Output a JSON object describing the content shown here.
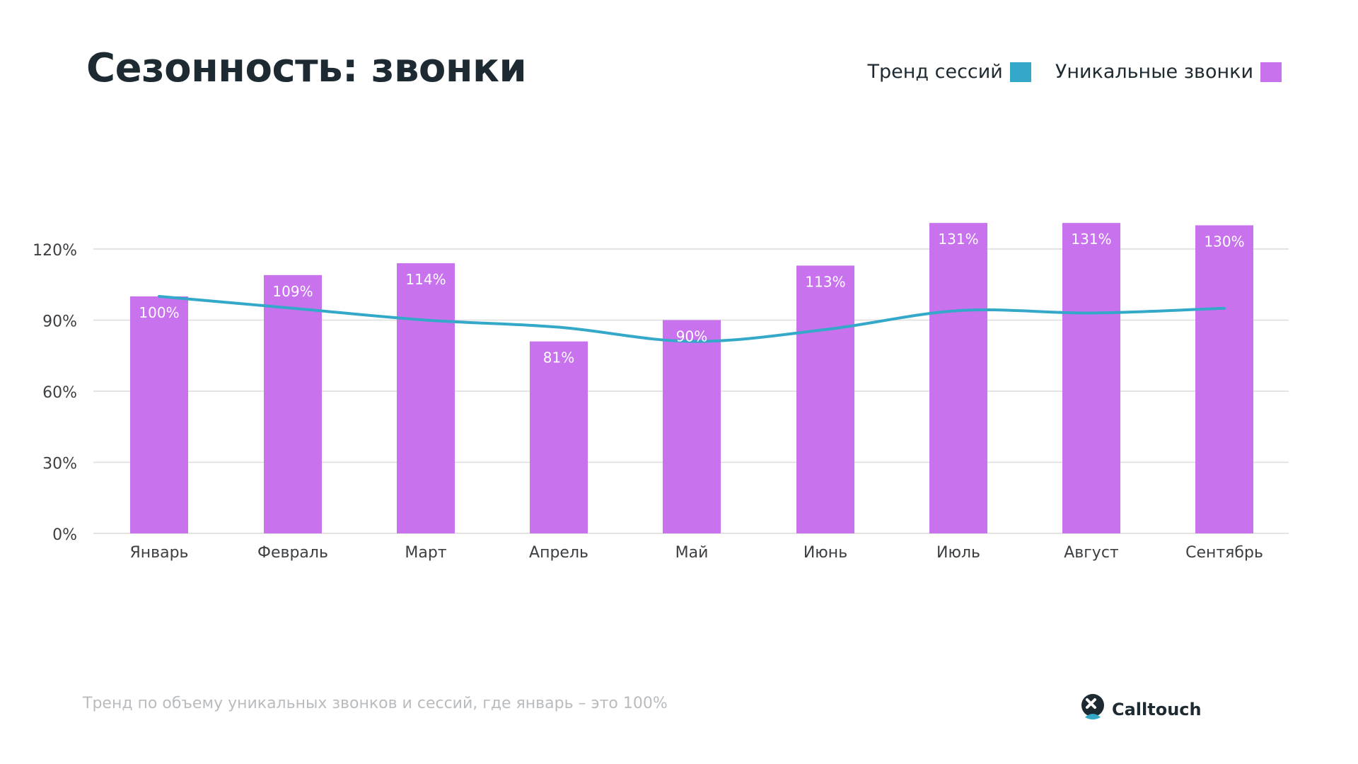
{
  "title": "Сезонность: звонки",
  "legend": {
    "trend_label": "Тренд сессий",
    "bars_label": "Уникальные звонки"
  },
  "colors": {
    "bars": "#c872ee",
    "trend": "#33a8c9",
    "grid": "#dcdcdc",
    "axis_text": "#3c3f42",
    "bar_label": "#ffffff"
  },
  "chart_data": {
    "type": "bar",
    "categories": [
      "Январь",
      "Февраль",
      "Март",
      "Апрель",
      "Май",
      "Июнь",
      "Июль",
      "Август",
      "Сентябрь"
    ],
    "series": [
      {
        "name": "Уникальные звонки",
        "type": "bar",
        "values": [
          100,
          109,
          114,
          81,
          90,
          113,
          131,
          131,
          130
        ],
        "labels": [
          "100%",
          "109%",
          "114%",
          "81%",
          "90%",
          "113%",
          "131%",
          "131%",
          "130%"
        ]
      },
      {
        "name": "Тренд сессий",
        "type": "line",
        "values": [
          100,
          95,
          90,
          87,
          81,
          86,
          94,
          93,
          95
        ]
      }
    ],
    "yticks": [
      "0%",
      "30%",
      "60%",
      "90%",
      "120%"
    ],
    "ytick_values": [
      0,
      30,
      60,
      90,
      120
    ],
    "ylim": [
      0,
      120
    ],
    "grid": true,
    "legend_position": "top-right"
  },
  "footnote": "Тренд по объему уникальных звонков и сессий, где январь – это 100%",
  "brand": {
    "name": "Calltouch",
    "logo_icon": "calltouch-logo-icon"
  }
}
